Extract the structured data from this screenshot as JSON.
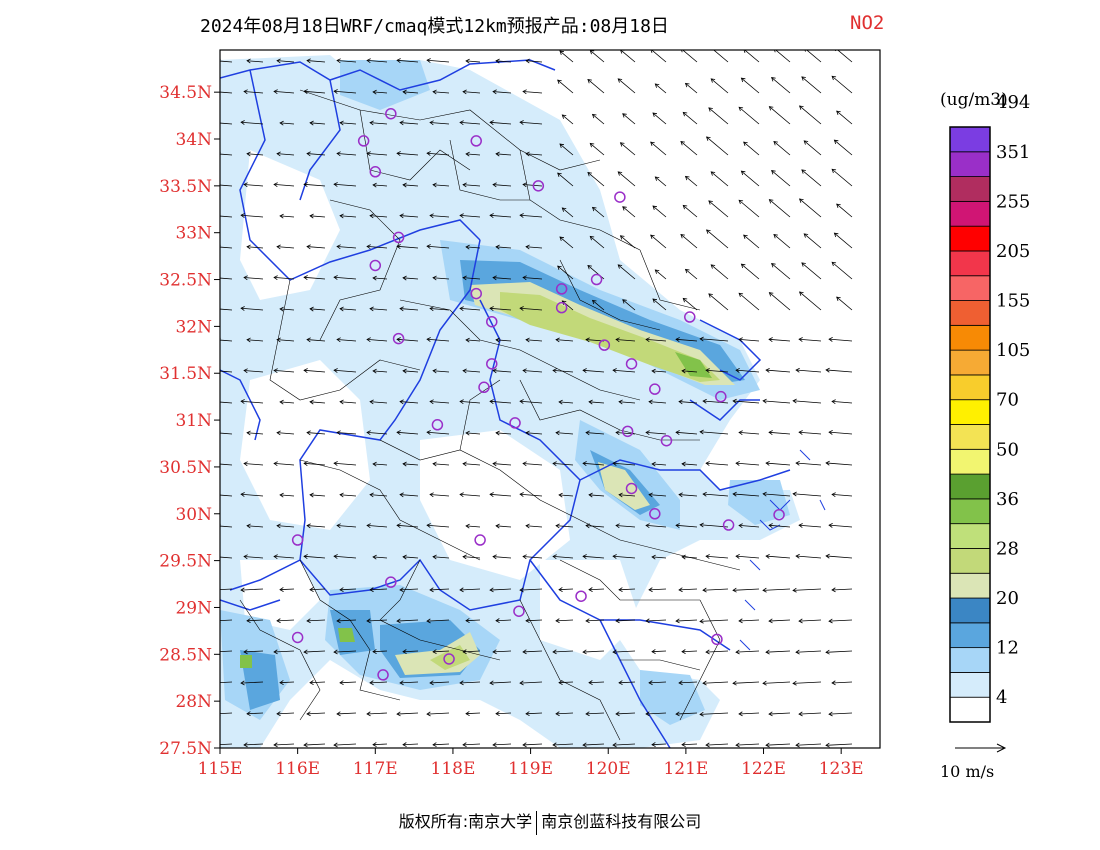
{
  "title": {
    "main": "2024年08月18日WRF/cmaq模式12km预报产品:08月18日",
    "species": "NO2"
  },
  "axes": {
    "lon_labels": [
      "115E",
      "116E",
      "117E",
      "118E",
      "119E",
      "120E",
      "121E",
      "122E",
      "123E"
    ],
    "lat_labels": [
      "27.5N",
      "28N",
      "28.5N",
      "29N",
      "29.5N",
      "30N",
      "30.5N",
      "31N",
      "31.5N",
      "32N",
      "32.5N",
      "33N",
      "33.5N",
      "34N",
      "34.5N"
    ],
    "lon_range": [
      115,
      123.5
    ],
    "lat_range": [
      27.5,
      34.95
    ],
    "label_color": "#e03030"
  },
  "legend": {
    "unit": "(ug/m3)",
    "colors": [
      "#ffffff",
      "#d5ecfb",
      "#a7d6f7",
      "#5aa6de",
      "#3b86c4",
      "#dbe5b6",
      "#c2d979",
      "#bfe07a",
      "#82c24a",
      "#5aa030",
      "#f2f570",
      "#f3e354",
      "#fff000",
      "#f8cd2c",
      "#f6aa34",
      "#f78a05",
      "#ef5f32",
      "#f76565",
      "#f2364b",
      "#ff0000",
      "#d01574",
      "#b02d5f",
      "#9a2fc8",
      "#7b3de2"
    ],
    "labels": [
      "4",
      "12",
      "20",
      "28",
      "36",
      "50",
      "70",
      "105",
      "155",
      "205",
      "255",
      "351",
      "494"
    ]
  },
  "wind_scale": {
    "label": "10 m/s"
  },
  "footer": {
    "left": "版权所有:南京大学",
    "right": "南京创蓝科技有限公司"
  },
  "stations": [
    [
      116.0,
      29.72
    ],
    [
      116.85,
      33.98
    ],
    [
      117.2,
      34.27
    ],
    [
      117.0,
      33.65
    ],
    [
      117.3,
      32.95
    ],
    [
      117.0,
      32.65
    ],
    [
      117.3,
      31.87
    ],
    [
      118.3,
      33.98
    ],
    [
      119.1,
      33.5
    ],
    [
      120.15,
      33.38
    ],
    [
      118.3,
      32.35
    ],
    [
      118.5,
      32.05
    ],
    [
      119.4,
      32.4
    ],
    [
      119.4,
      32.2
    ],
    [
      119.85,
      32.5
    ],
    [
      119.95,
      31.8
    ],
    [
      121.05,
      32.1
    ],
    [
      118.5,
      31.6
    ],
    [
      118.4,
      31.35
    ],
    [
      117.8,
      30.95
    ],
    [
      118.8,
      30.97
    ],
    [
      120.25,
      30.88
    ],
    [
      120.3,
      31.6
    ],
    [
      120.6,
      31.33
    ],
    [
      120.75,
      30.78
    ],
    [
      121.45,
      31.25
    ],
    [
      120.3,
      30.27
    ],
    [
      120.6,
      30.0
    ],
    [
      121.55,
      29.88
    ],
    [
      122.2,
      29.99
    ],
    [
      118.35,
      29.72
    ],
    [
      117.2,
      29.27
    ],
    [
      116.0,
      28.68
    ],
    [
      118.85,
      28.96
    ],
    [
      119.65,
      29.12
    ],
    [
      117.95,
      28.45
    ],
    [
      117.1,
      28.28
    ],
    [
      121.4,
      28.66
    ]
  ]
}
